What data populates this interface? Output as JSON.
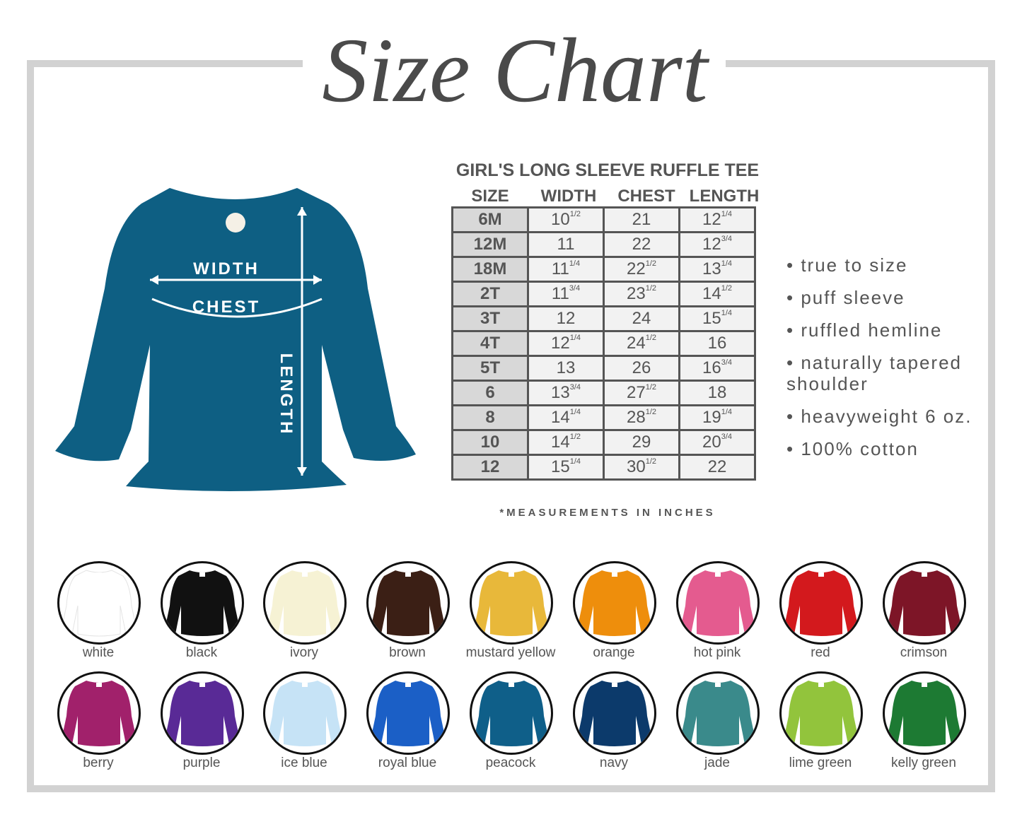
{
  "title": "Size Chart",
  "product": "GIRL'S LONG SLEEVE RUFFLE TEE",
  "shirt_color": "#0e5f83",
  "diagram_labels": {
    "width": "WIDTH",
    "chest": "CHEST",
    "length": "LENGTH"
  },
  "table": {
    "headers": [
      "SIZE",
      "WIDTH",
      "CHEST",
      "LENGTH"
    ],
    "rows": [
      [
        [
          "6M",
          ""
        ],
        [
          "10",
          "1/2"
        ],
        [
          "21",
          ""
        ],
        [
          "12",
          "1/4"
        ]
      ],
      [
        [
          "12M",
          ""
        ],
        [
          "11",
          ""
        ],
        [
          "22",
          ""
        ],
        [
          "12",
          "3/4"
        ]
      ],
      [
        [
          "18M",
          ""
        ],
        [
          "11",
          "1/4"
        ],
        [
          "22",
          "1/2"
        ],
        [
          "13",
          "1/4"
        ]
      ],
      [
        [
          "2T",
          ""
        ],
        [
          "11",
          "3/4"
        ],
        [
          "23",
          "1/2"
        ],
        [
          "14",
          "1/2"
        ]
      ],
      [
        [
          "3T",
          ""
        ],
        [
          "12",
          ""
        ],
        [
          "24",
          ""
        ],
        [
          "15",
          "1/4"
        ]
      ],
      [
        [
          "4T",
          ""
        ],
        [
          "12",
          "1/4"
        ],
        [
          "24",
          "1/2"
        ],
        [
          "16",
          ""
        ]
      ],
      [
        [
          "5T",
          ""
        ],
        [
          "13",
          ""
        ],
        [
          "26",
          ""
        ],
        [
          "16",
          "3/4"
        ]
      ],
      [
        [
          "6",
          ""
        ],
        [
          "13",
          "3/4"
        ],
        [
          "27",
          "1/2"
        ],
        [
          "18",
          ""
        ]
      ],
      [
        [
          "8",
          ""
        ],
        [
          "14",
          "1/4"
        ],
        [
          "28",
          "1/2"
        ],
        [
          "19",
          "1/4"
        ]
      ],
      [
        [
          "10",
          ""
        ],
        [
          "14",
          "1/2"
        ],
        [
          "29",
          ""
        ],
        [
          "20",
          "3/4"
        ]
      ],
      [
        [
          "12",
          ""
        ],
        [
          "15",
          "1/4"
        ],
        [
          "30",
          "1/2"
        ],
        [
          "22",
          ""
        ]
      ]
    ],
    "note": "*MEASUREMENTS IN INCHES"
  },
  "features": [
    "• true to size",
    "• puff sleeve",
    "• ruffled hemline",
    "• naturally tapered shoulder",
    "• heavyweight 6 oz.",
    "• 100% cotton"
  ],
  "colors": [
    {
      "name": "white",
      "hex": "#ffffff"
    },
    {
      "name": "black",
      "hex": "#111111"
    },
    {
      "name": "ivory",
      "hex": "#f6f2d4"
    },
    {
      "name": "brown",
      "hex": "#3b1f15"
    },
    {
      "name": "mustard yellow",
      "hex": "#e8b83a"
    },
    {
      "name": "orange",
      "hex": "#ee8e0c"
    },
    {
      "name": "hot pink",
      "hex": "#e45b8f"
    },
    {
      "name": "red",
      "hex": "#d3191d"
    },
    {
      "name": "crimson",
      "hex": "#7d1527"
    },
    {
      "name": "berry",
      "hex": "#a1216b"
    },
    {
      "name": "purple",
      "hex": "#592a96"
    },
    {
      "name": "ice blue",
      "hex": "#c6e3f6"
    },
    {
      "name": "royal blue",
      "hex": "#1b5fc6"
    },
    {
      "name": "peacock",
      "hex": "#0f5f89"
    },
    {
      "name": "navy",
      "hex": "#0c3a6b"
    },
    {
      "name": "jade",
      "hex": "#3a8a8b"
    },
    {
      "name": "lime green",
      "hex": "#92c43c"
    },
    {
      "name": "kelly green",
      "hex": "#1d7a33"
    }
  ]
}
